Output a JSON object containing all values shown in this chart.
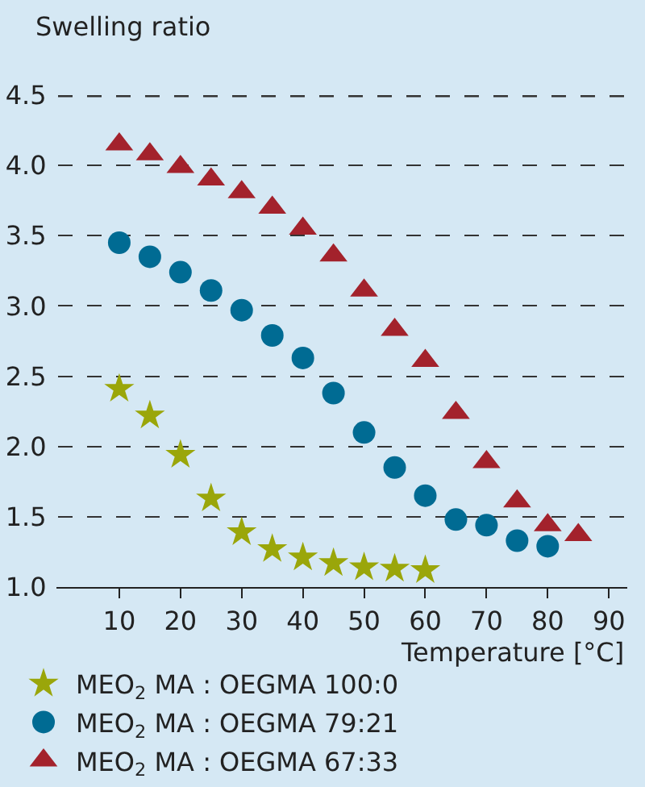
{
  "chart_data": {
    "type": "scatter",
    "ylabel": "Swelling ratio",
    "xlabel": "Temperature [°C]",
    "xlim": [
      0,
      93
    ],
    "ylim": [
      1,
      4.5
    ],
    "xticks": [
      10,
      20,
      30,
      40,
      50,
      60,
      70,
      80,
      90
    ],
    "yticks": [
      {
        "value": 1,
        "label": "1.0"
      },
      1.5,
      {
        "value": 2,
        "label": "2.0"
      },
      2.5,
      {
        "value": 3,
        "label": "3.0"
      },
      3.5,
      {
        "value": 4,
        "label": "4.0"
      },
      4.5
    ],
    "grid": "y",
    "legend": "bottom left",
    "series": [
      {
        "name": "MEO$_{2}$ MA : OEGMA 100:0",
        "color": "#9aa60a",
        "marker": "star",
        "x": [
          10,
          15,
          20,
          25,
          30,
          35,
          40,
          45,
          50,
          55,
          60
        ],
        "values": [
          2.41,
          2.22,
          1.94,
          1.63,
          1.39,
          1.27,
          1.21,
          1.17,
          1.14,
          1.13,
          1.12
        ]
      },
      {
        "name": "MEO$_{2}$ MA : OEGMA 79:21",
        "color": "#006b93",
        "marker": "circle",
        "x": [
          10,
          15,
          20,
          25,
          30,
          35,
          40,
          45,
          50,
          55,
          60,
          65,
          70,
          75,
          80
        ],
        "values": [
          3.45,
          3.35,
          3.24,
          3.11,
          2.97,
          2.79,
          2.63,
          2.38,
          2.1,
          1.85,
          1.65,
          1.48,
          1.44,
          1.33,
          1.29
        ]
      },
      {
        "name": "MEO$_{2}$ MA : OEGMA 67:33",
        "color": "#a3222c",
        "marker": "triangle",
        "x": [
          10,
          15,
          20,
          25,
          30,
          35,
          40,
          45,
          50,
          55,
          60,
          65,
          70,
          75,
          80,
          85
        ],
        "values": [
          4.15,
          4.08,
          3.99,
          3.9,
          3.81,
          3.7,
          3.55,
          3.36,
          3.11,
          2.83,
          2.61,
          2.24,
          1.89,
          1.61,
          1.44,
          1.37
        ]
      }
    ]
  }
}
